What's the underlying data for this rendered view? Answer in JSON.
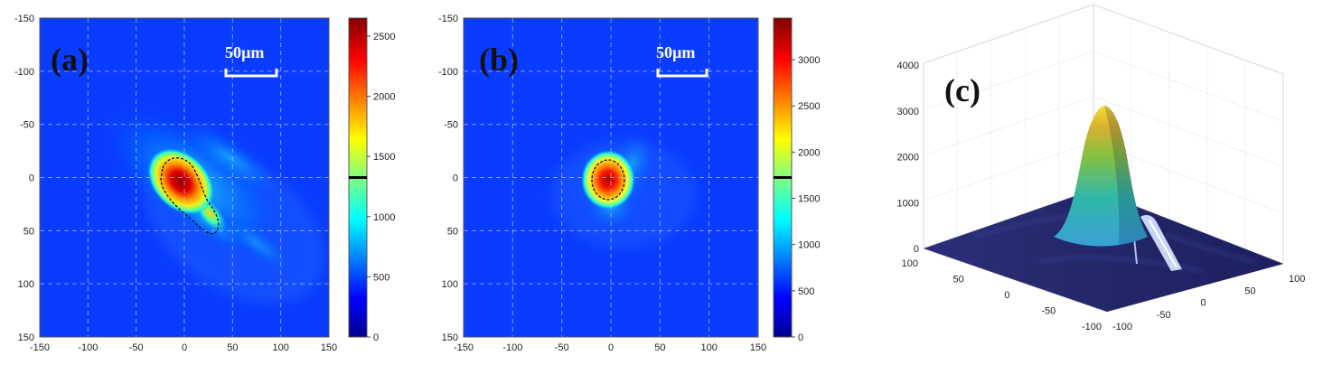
{
  "chart_data": [
    {
      "type": "heatmap",
      "panel_label": "(a)",
      "scale_bar_label": "50µm",
      "xlim": [
        -150,
        150
      ],
      "ylim": [
        -150,
        150
      ],
      "x_ticks": [
        "-150",
        "-100",
        "-50",
        "0",
        "50",
        "100",
        "150"
      ],
      "y_ticks": [
        "-150",
        "-100",
        "-50",
        "0",
        "50",
        "100",
        "150"
      ],
      "y_reversed": true,
      "grid": true,
      "colorbar": {
        "range": [
          0,
          2650
        ],
        "ticks": [
          "0",
          "500",
          "1000",
          "1500",
          "2000",
          "2500"
        ],
        "marker_value": 1325
      },
      "colormap": "jet",
      "peak": {
        "x": -5,
        "y": 0,
        "value": 2650
      },
      "contour_level": 1325
    },
    {
      "type": "heatmap",
      "panel_label": "(b)",
      "scale_bar_label": "50µm",
      "xlim": [
        -150,
        150
      ],
      "ylim": [
        -150,
        150
      ],
      "x_ticks": [
        "-150",
        "-100",
        "-50",
        "0",
        "50",
        "100",
        "150"
      ],
      "y_ticks": [
        "-150",
        "-100",
        "-50",
        "0",
        "50",
        "100",
        "150"
      ],
      "y_reversed": true,
      "grid": true,
      "colorbar": {
        "range": [
          0,
          3450
        ],
        "ticks": [
          "0",
          "500",
          "1000",
          "1500",
          "2000",
          "2500",
          "3000"
        ],
        "marker_value": 1725
      },
      "colormap": "jet",
      "peak": {
        "x": 0,
        "y": 0,
        "value": 3450
      },
      "contour_level": 1725
    },
    {
      "type": "surface",
      "panel_label": "(c)",
      "x_ticks": [
        "100",
        "50",
        "0",
        "-50",
        "-100"
      ],
      "y_ticks": [
        "-100",
        "-50",
        "0",
        "50",
        "100"
      ],
      "z_ticks": [
        "0",
        "1000",
        "2000",
        "3000",
        "4000"
      ],
      "zlim": [
        0,
        4000
      ],
      "peak": {
        "x": 0,
        "y": 0,
        "value": 3450
      },
      "colormap": "parula"
    }
  ]
}
